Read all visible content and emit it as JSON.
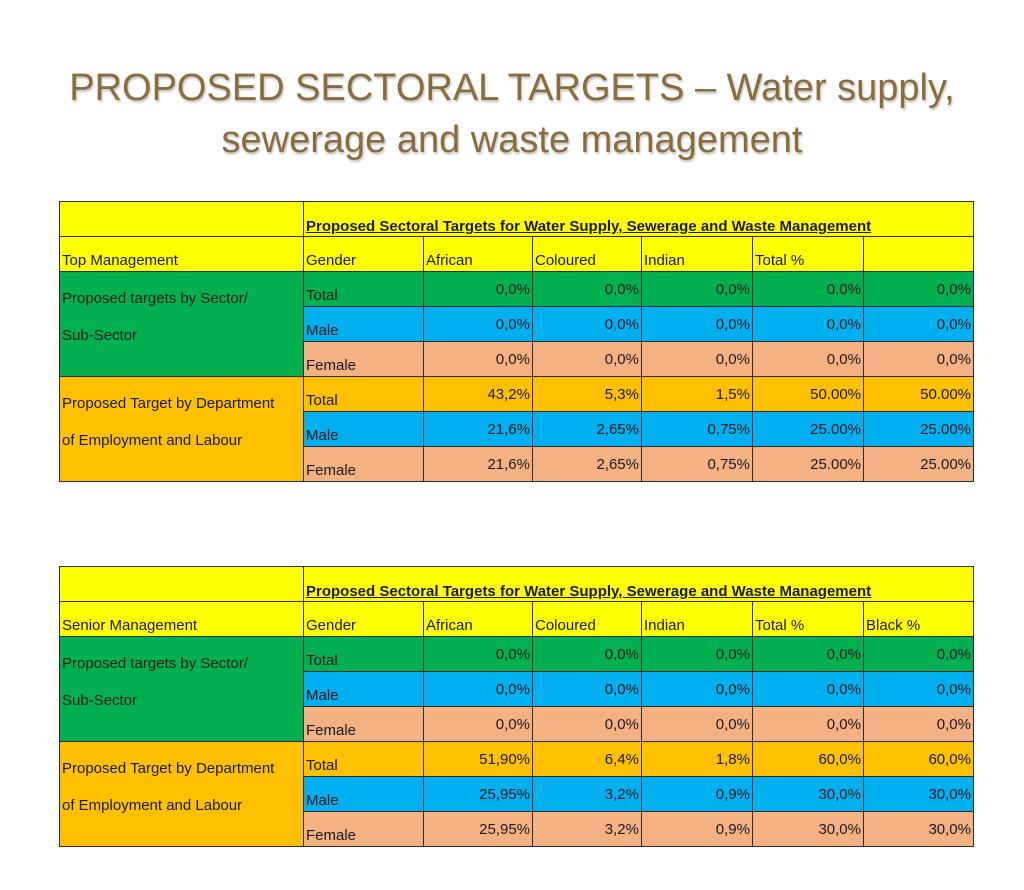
{
  "title": {
    "line1": "PROPOSED SECTORAL TARGETS – Water supply,",
    "line2": "sewerage and waste management"
  },
  "tables": [
    {
      "caption": "Proposed Sectoral Targets for Water Supply, Sewerage and Waste Management",
      "section": "Top Management",
      "headers": [
        "Gender",
        "African",
        "Coloured",
        "Indian",
        "Total %",
        ""
      ],
      "group1": {
        "label_a": "Proposed targets by Sector/",
        "label_b": "Sub-Sector",
        "rows": [
          {
            "gender": "Total",
            "values": [
              "0,0%",
              "0,0%",
              "0,0%",
              "0,0%",
              "0,0%"
            ]
          },
          {
            "gender": "Male",
            "values": [
              "0,0%",
              "0,0%",
              "0,0%",
              "0,0%",
              "0,0%"
            ]
          },
          {
            "gender": "Female",
            "values": [
              "0,0%",
              "0,0%",
              "0,0%",
              "0,0%",
              "0,0%"
            ]
          }
        ]
      },
      "group2": {
        "label_a": "Proposed Target by Department",
        "label_b": "of Employment and Labour",
        "rows": [
          {
            "gender": "Total",
            "values": [
              "43,2%",
              "5,3%",
              "1,5%",
              "50.00%",
              "50.00%"
            ]
          },
          {
            "gender": "Male",
            "values": [
              "21,6%",
              "2,65%",
              "0,75%",
              "25.00%",
              "25.00%"
            ]
          },
          {
            "gender": "Female",
            "values": [
              "21,6%",
              "2,65%",
              "0,75%",
              "25.00%",
              "25.00%"
            ]
          }
        ]
      }
    },
    {
      "caption": "Proposed Sectoral Targets for Water Supply, Sewerage and Waste Management",
      "section": "Senior Management",
      "headers": [
        "Gender",
        "African",
        "Coloured",
        "Indian",
        "Total %",
        "Black %"
      ],
      "group1": {
        "label_a": "Proposed targets by Sector/",
        "label_b": "Sub-Sector",
        "rows": [
          {
            "gender": "Total",
            "values": [
              "0,0%",
              "0,0%",
              "0,0%",
              "0,0%",
              "0,0%"
            ]
          },
          {
            "gender": "Male",
            "values": [
              "0,0%",
              "0,0%",
              "0,0%",
              "0,0%",
              "0,0%"
            ]
          },
          {
            "gender": "Female",
            "values": [
              "0,0%",
              "0,0%",
              "0,0%",
              "0,0%",
              "0,0%"
            ]
          }
        ]
      },
      "group2": {
        "label_a": "Proposed Target by Department",
        "label_b": "of Employment and Labour",
        "rows": [
          {
            "gender": "Total",
            "values": [
              "51,90%",
              "6,4%",
              "1,8%",
              "60,0%",
              "60,0%"
            ]
          },
          {
            "gender": "Male",
            "values": [
              "25,95%",
              "3,2%",
              "0,9%",
              "30,0%",
              "30,0%"
            ]
          },
          {
            "gender": "Female",
            "values": [
              "25,95%",
              "3,2%",
              "0,9%",
              "30,0%",
              "30,0%"
            ]
          }
        ]
      }
    }
  ],
  "colors": {
    "title": "#8a6d3b",
    "header": "#ffff00",
    "sector_group": "#00b050",
    "department_group": "#ffc000",
    "male_row": "#00b0f0",
    "female_row": "#f4b183"
  }
}
